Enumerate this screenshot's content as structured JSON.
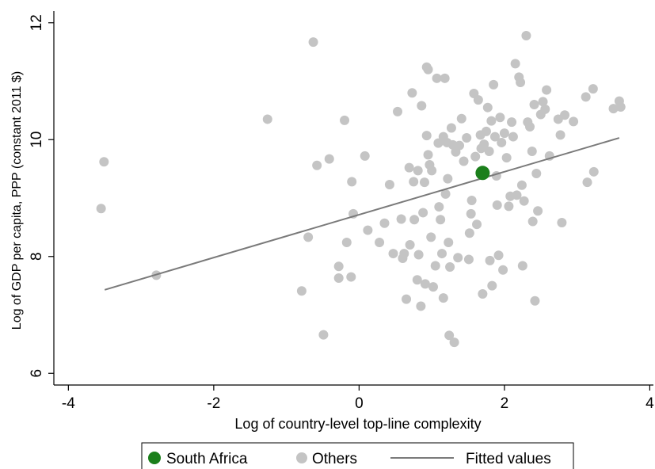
{
  "chart_data": {
    "type": "scatter",
    "xlabel": "Log of country-level top-line complexity",
    "ylabel": "Log of GDP per capita, PPP (constant 2011 $)",
    "xlim": [
      -4.2,
      4.05
    ],
    "ylim": [
      5.8,
      12.2
    ],
    "xticks": [
      -4,
      -2,
      0,
      2,
      4
    ],
    "yticks": [
      6,
      8,
      10,
      12
    ],
    "grid": false,
    "legend_position": "bottom",
    "colors": {
      "highlight": "#1b7f1b",
      "others": "#c4c4c4",
      "fit": "#7a7a7a"
    },
    "fitted_line": {
      "name": "Fitted values",
      "x": [
        -3.5,
        3.58
      ],
      "y": [
        7.43,
        10.03
      ]
    },
    "series": [
      {
        "name": "South Africa",
        "points": [
          [
            1.7,
            9.43
          ]
        ]
      },
      {
        "name": "Others",
        "points": [
          [
            -3.51,
            9.62
          ],
          [
            -3.55,
            8.82
          ],
          [
            -2.79,
            7.68
          ],
          [
            -1.26,
            10.35
          ],
          [
            -0.63,
            11.67
          ],
          [
            -0.58,
            9.56
          ],
          [
            -0.41,
            9.67
          ],
          [
            -0.7,
            8.33
          ],
          [
            -0.79,
            7.41
          ],
          [
            -0.49,
            6.66
          ],
          [
            -0.2,
            10.33
          ],
          [
            -0.28,
            7.83
          ],
          [
            -0.28,
            7.63
          ],
          [
            -0.17,
            8.24
          ],
          [
            -0.1,
            9.28
          ],
          [
            -0.08,
            8.73
          ],
          [
            -0.11,
            7.65
          ],
          [
            0.08,
            9.72
          ],
          [
            0.12,
            8.45
          ],
          [
            0.28,
            8.24
          ],
          [
            0.35,
            8.57
          ],
          [
            0.42,
            9.23
          ],
          [
            0.47,
            8.05
          ],
          [
            0.53,
            10.48
          ],
          [
            0.58,
            8.64
          ],
          [
            0.6,
            7.97
          ],
          [
            0.62,
            8.05
          ],
          [
            0.65,
            7.27
          ],
          [
            0.69,
            9.52
          ],
          [
            0.7,
            8.2
          ],
          [
            0.73,
            10.8
          ],
          [
            0.75,
            9.28
          ],
          [
            0.76,
            8.63
          ],
          [
            0.81,
            9.47
          ],
          [
            0.8,
            7.6
          ],
          [
            0.82,
            8.03
          ],
          [
            0.85,
            7.15
          ],
          [
            0.86,
            10.58
          ],
          [
            0.88,
            8.75
          ],
          [
            0.9,
            9.27
          ],
          [
            0.91,
            7.53
          ],
          [
            0.93,
            11.24
          ],
          [
            0.95,
            11.2
          ],
          [
            0.93,
            10.07
          ],
          [
            0.95,
            9.74
          ],
          [
            0.97,
            9.57
          ],
          [
            1.0,
            9.47
          ],
          [
            0.99,
            8.33
          ],
          [
            1.02,
            7.48
          ],
          [
            1.05,
            7.84
          ],
          [
            1.07,
            11.05
          ],
          [
            1.09,
            9.94
          ],
          [
            1.1,
            8.85
          ],
          [
            1.12,
            8.63
          ],
          [
            1.14,
            8.05
          ],
          [
            1.16,
            10.05
          ],
          [
            1.16,
            7.29
          ],
          [
            1.18,
            11.05
          ],
          [
            1.19,
            9.07
          ],
          [
            1.21,
            9.95
          ],
          [
            1.22,
            9.33
          ],
          [
            1.23,
            8.24
          ],
          [
            1.25,
            7.82
          ],
          [
            1.24,
            6.65
          ],
          [
            1.27,
            10.2
          ],
          [
            1.29,
            9.91
          ],
          [
            1.31,
            6.53
          ],
          [
            1.33,
            9.79
          ],
          [
            1.36,
            7.98
          ],
          [
            1.38,
            9.9
          ],
          [
            1.41,
            10.36
          ],
          [
            1.44,
            9.63
          ],
          [
            1.48,
            10.03
          ],
          [
            1.51,
            7.95
          ],
          [
            1.52,
            8.4
          ],
          [
            1.54,
            8.73
          ],
          [
            1.55,
            8.96
          ],
          [
            1.58,
            10.79
          ],
          [
            1.6,
            9.71
          ],
          [
            1.62,
            8.55
          ],
          [
            1.64,
            10.68
          ],
          [
            1.67,
            10.08
          ],
          [
            1.68,
            9.85
          ],
          [
            1.7,
            7.36
          ],
          [
            1.72,
            9.92
          ],
          [
            1.75,
            10.14
          ],
          [
            1.77,
            10.55
          ],
          [
            1.79,
            9.8
          ],
          [
            1.8,
            7.93
          ],
          [
            1.82,
            10.32
          ],
          [
            1.83,
            7.5
          ],
          [
            1.85,
            10.94
          ],
          [
            1.87,
            10.05
          ],
          [
            1.89,
            9.38
          ],
          [
            1.9,
            8.88
          ],
          [
            1.92,
            8.02
          ],
          [
            1.94,
            10.38
          ],
          [
            1.96,
            9.95
          ],
          [
            1.98,
            7.77
          ],
          [
            2.0,
            10.11
          ],
          [
            2.03,
            9.69
          ],
          [
            2.06,
            8.86
          ],
          [
            2.08,
            9.03
          ],
          [
            2.1,
            10.3
          ],
          [
            2.12,
            10.05
          ],
          [
            2.15,
            11.3
          ],
          [
            2.17,
            9.05
          ],
          [
            2.2,
            11.07
          ],
          [
            2.22,
            10.98
          ],
          [
            2.24,
            9.22
          ],
          [
            2.25,
            7.84
          ],
          [
            2.27,
            8.95
          ],
          [
            2.3,
            11.78
          ],
          [
            2.32,
            10.3
          ],
          [
            2.35,
            10.22
          ],
          [
            2.38,
            9.8
          ],
          [
            2.39,
            8.6
          ],
          [
            2.41,
            10.6
          ],
          [
            2.42,
            7.24
          ],
          [
            2.44,
            9.42
          ],
          [
            2.46,
            8.78
          ],
          [
            2.5,
            10.43
          ],
          [
            2.53,
            10.65
          ],
          [
            2.56,
            10.52
          ],
          [
            2.58,
            10.85
          ],
          [
            2.62,
            9.72
          ],
          [
            2.74,
            10.35
          ],
          [
            2.77,
            10.08
          ],
          [
            2.79,
            8.58
          ],
          [
            2.83,
            10.42
          ],
          [
            2.95,
            10.31
          ],
          [
            3.12,
            10.73
          ],
          [
            3.14,
            9.27
          ],
          [
            3.22,
            10.87
          ],
          [
            3.23,
            9.45
          ],
          [
            3.5,
            10.53
          ],
          [
            3.58,
            10.66
          ],
          [
            3.6,
            10.56
          ]
        ]
      }
    ],
    "legend": [
      {
        "label": "South Africa",
        "kind": "dot-highlight"
      },
      {
        "label": "Others",
        "kind": "dot-others"
      },
      {
        "label": "Fitted values",
        "kind": "line"
      }
    ]
  }
}
